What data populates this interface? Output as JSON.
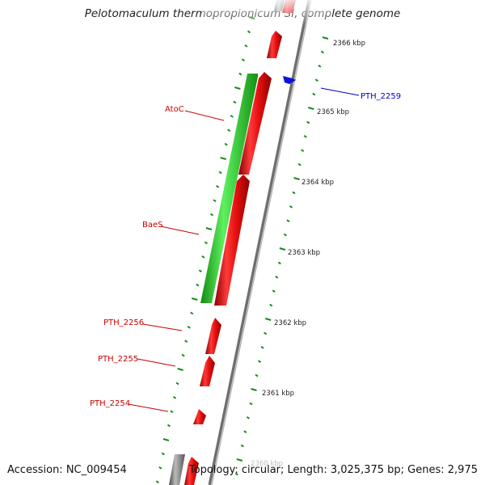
{
  "title": "Pelotomaculum thermopropionicum SI, complete genome",
  "accession": "Accession: NC_009454",
  "topology": "Topology: circular; Length: 3,025,375 bp; Genes: 2,975",
  "colors": {
    "forward_gene": "#e01010",
    "reverse_gene": "#2ccc2c",
    "highlight_gene": "#1010dd",
    "pseudo_gene": "#888888",
    "ticks": "#1a8a1a",
    "backbone": "#7a7a7a"
  },
  "ticks": [
    {
      "label": "2366 kbp"
    },
    {
      "label": "2365 kbp"
    },
    {
      "label": "2364 kbp"
    },
    {
      "label": "2363 kbp"
    },
    {
      "label": "2362 kbp"
    },
    {
      "label": "2361 kbp"
    },
    {
      "label": "2360 kbp"
    }
  ],
  "gene_labels": [
    {
      "name": "AtoC",
      "color": "#cc0000"
    },
    {
      "name": "BaeS",
      "color": "#cc0000"
    },
    {
      "name": "PTH_2256",
      "color": "#cc0000"
    },
    {
      "name": "PTH_2255",
      "color": "#cc0000"
    },
    {
      "name": "PTH_2254",
      "color": "#cc0000"
    },
    {
      "name": "PTH_2259",
      "color": "#0000cc"
    }
  ]
}
